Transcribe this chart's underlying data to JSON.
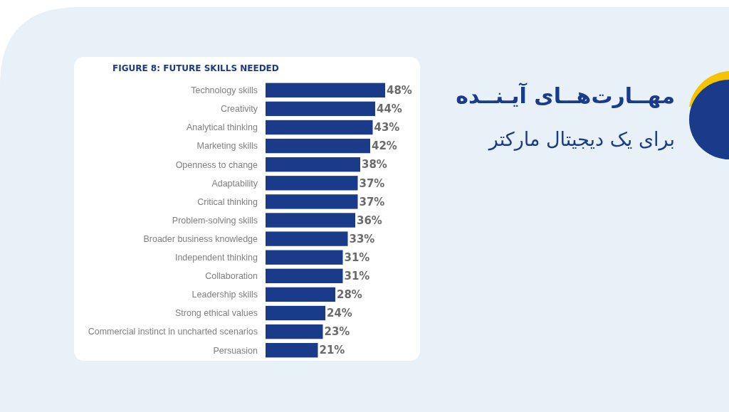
{
  "chart_data": {
    "type": "bar",
    "orientation": "horizontal",
    "title": "FIGURE 8: FUTURE SKILLS NEEDED",
    "annotations": [
      "مهــارت‌هــای آیـنــده",
      "برای یک دیجیتال مارکتر"
    ],
    "categories": [
      "Technology skills",
      "Creativity",
      "Analytical thinking",
      "Marketing skills",
      "Openness to change",
      "Adaptability",
      "Critical thinking",
      "Problem-solving skills",
      "Broader business knowledge",
      "Independent thinking",
      "Collaboration",
      "Leadership skills",
      "Strong ethical values",
      "Commercial instinct in uncharted scenarios",
      "Persuasion"
    ],
    "values": [
      48,
      44,
      43,
      42,
      38,
      37,
      37,
      36,
      33,
      31,
      31,
      28,
      24,
      23,
      21
    ],
    "value_labels": [
      "48%",
      "44%",
      "43%",
      "42%",
      "38%",
      "37%",
      "37%",
      "36%",
      "33%",
      "31%",
      "31%",
      "28%",
      "24%",
      "23%",
      "21%"
    ],
    "color": "#1a3a8a"
  }
}
